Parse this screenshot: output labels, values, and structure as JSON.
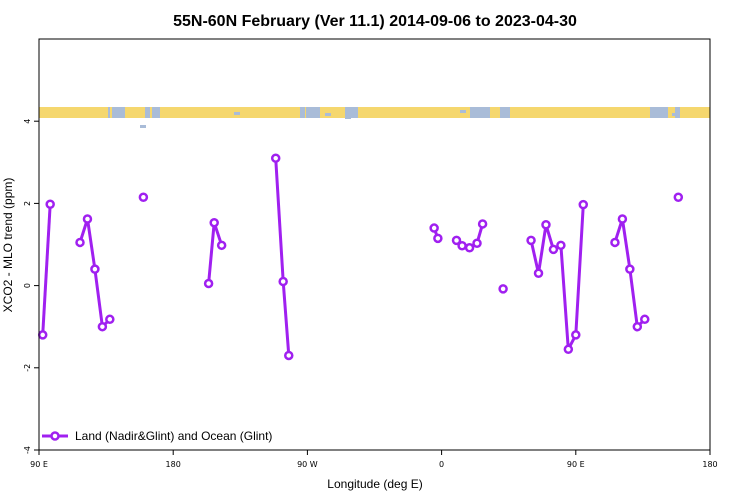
{
  "chart_data": {
    "type": "line",
    "title": "55N-60N February (Ver 11.1)   2014-09-06 to 2023-04-30",
    "xlabel": "Longitude (deg E)",
    "ylabel": "XCO2 - MLO trend (ppm)",
    "xlim": [
      -180,
      180
    ],
    "ylim": [
      -4,
      6
    ],
    "x_ticks": [
      {
        "value": -180,
        "label": "90 E"
      },
      {
        "value": -108,
        "label": "180"
      },
      {
        "value": -36,
        "label": "90 W"
      },
      {
        "value": 36,
        "label": "0"
      },
      {
        "value": 108,
        "label": "90 E"
      },
      {
        "value": 180,
        "label": "180"
      }
    ],
    "y_ticks": [
      {
        "value": -4,
        "label": "-4"
      },
      {
        "value": -2,
        "label": "-2"
      },
      {
        "value": 0,
        "label": "0"
      },
      {
        "value": 2,
        "label": "2"
      },
      {
        "value": 4,
        "label": "4"
      }
    ],
    "line_color": "#a020f0",
    "band_colors": {
      "land": "#f5d76e",
      "ocean": "#a9bcd8"
    },
    "legend": {
      "position": "bottom-left",
      "entries": [
        "Land (Nadir&Glint) and Ocean (Glint)"
      ]
    },
    "series": [
      {
        "name": "Land (Nadir&Glint) and Ocean (Glint)",
        "segments": [
          [
            [
              -178,
              -1.2
            ],
            [
              -174,
              1.98
            ]
          ],
          [
            [
              -158,
              1.05
            ],
            [
              -154,
              1.62
            ],
            [
              -150,
              0.4
            ],
            [
              -146,
              -1.0
            ],
            [
              -142,
              -0.82
            ]
          ],
          [
            [
              -124,
              2.15
            ]
          ],
          [
            [
              -89,
              0.05
            ],
            [
              -86,
              1.53
            ],
            [
              -82,
              0.98
            ]
          ],
          [
            [
              -53,
              3.1
            ],
            [
              -49,
              0.1
            ],
            [
              -46,
              -1.7
            ]
          ],
          [
            [
              32,
              1.4
            ],
            [
              34,
              1.15
            ]
          ],
          [
            [
              44,
              1.1
            ],
            [
              47,
              0.97
            ],
            [
              51,
              0.92
            ],
            [
              55,
              1.03
            ],
            [
              58,
              1.5
            ]
          ],
          [
            [
              69,
              -0.08
            ]
          ],
          [
            [
              84,
              1.1
            ],
            [
              88,
              0.3
            ],
            [
              92,
              1.48
            ],
            [
              96,
              0.88
            ],
            [
              100,
              0.98
            ],
            [
              104,
              -1.55
            ],
            [
              108,
              -1.2
            ],
            [
              112,
              1.97
            ]
          ],
          [
            [
              129,
              1.05
            ],
            [
              133,
              1.62
            ],
            [
              137,
              0.4
            ],
            [
              141,
              -1.0
            ],
            [
              145,
              -0.82
            ]
          ],
          [
            [
              163,
              2.15
            ]
          ]
        ]
      }
    ]
  }
}
